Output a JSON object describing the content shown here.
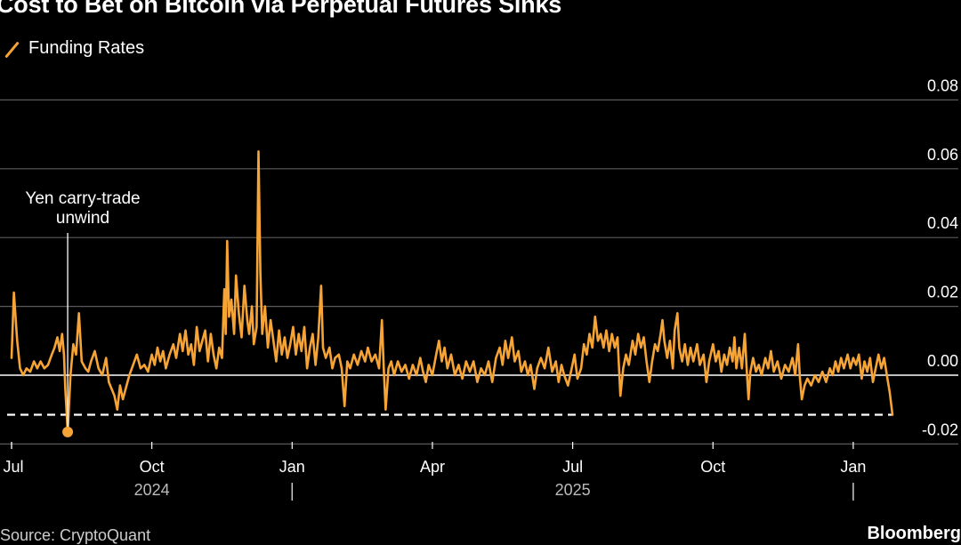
{
  "title": "Cost to Bet on Bitcoin via Perpetual Futures Sinks",
  "legend": {
    "label": "Funding Rates"
  },
  "source": "Source: CryptoQuant",
  "brand": "Bloomberg",
  "chart_data": {
    "type": "line",
    "title": "Cost to Bet on Bitcoin via Perpetual Futures Sinks",
    "ylabel": "",
    "xlabel": "",
    "ylim": [
      -0.025,
      0.085
    ],
    "y_ticks": [
      0.08,
      0.06,
      0.04,
      0.02,
      0.0,
      -0.02
    ],
    "y_tick_labels": [
      "0.08",
      "0.06",
      "0.04",
      "0.02",
      "0.00",
      "-0.02"
    ],
    "x_ticks": [
      {
        "t": 0,
        "label": "Jul"
      },
      {
        "t": 3,
        "label": "Oct"
      },
      {
        "t": 6,
        "label": "Jan"
      },
      {
        "t": 9,
        "label": "Apr"
      },
      {
        "t": 12,
        "label": "Jul"
      },
      {
        "t": 15,
        "label": "Oct"
      },
      {
        "t": 18,
        "label": "Jan"
      }
    ],
    "year_labels": [
      {
        "t": 3,
        "label": "2024"
      },
      {
        "t": 12,
        "label": "2025"
      }
    ],
    "year_dividers": [
      6,
      18
    ],
    "reference_line": {
      "value": -0.0115,
      "style": "dashed"
    },
    "annotation": {
      "t": 1.2,
      "value": -0.0165,
      "lines": [
        "Yen carry-trade",
        "unwind"
      ]
    },
    "series": [
      {
        "name": "Funding Rates",
        "color": "#f6a436",
        "x_unit": "months since Jul 1, 2024",
        "points": [
          [
            0.0,
            0.005
          ],
          [
            0.05,
            0.024
          ],
          [
            0.12,
            0.01
          ],
          [
            0.18,
            0.002
          ],
          [
            0.25,
            0.0
          ],
          [
            0.32,
            0.002
          ],
          [
            0.4,
            0.001
          ],
          [
            0.48,
            0.004
          ],
          [
            0.55,
            0.002
          ],
          [
            0.62,
            0.004
          ],
          [
            0.7,
            0.002
          ],
          [
            0.78,
            0.003
          ],
          [
            0.86,
            0.006
          ],
          [
            0.92,
            0.008
          ],
          [
            0.98,
            0.011
          ],
          [
            1.03,
            0.007
          ],
          [
            1.08,
            0.012
          ],
          [
            1.12,
            0.006
          ],
          [
            1.15,
            -0.004
          ],
          [
            1.2,
            -0.0165
          ],
          [
            1.26,
            0.0
          ],
          [
            1.32,
            0.009
          ],
          [
            1.38,
            0.006
          ],
          [
            1.44,
            0.018
          ],
          [
            1.5,
            0.004
          ],
          [
            1.58,
            0.002
          ],
          [
            1.64,
            0.001
          ],
          [
            1.7,
            0.004
          ],
          [
            1.78,
            0.007
          ],
          [
            1.86,
            0.002
          ],
          [
            1.94,
            0.0
          ],
          [
            2.02,
            0.005
          ],
          [
            2.08,
            -0.002
          ],
          [
            2.14,
            -0.004
          ],
          [
            2.2,
            -0.006
          ],
          [
            2.26,
            -0.01
          ],
          [
            2.32,
            -0.003
          ],
          [
            2.38,
            -0.007
          ],
          [
            2.44,
            -0.004
          ],
          [
            2.52,
            0.0
          ],
          [
            2.6,
            0.003
          ],
          [
            2.68,
            0.006
          ],
          [
            2.76,
            0.002
          ],
          [
            2.84,
            0.003
          ],
          [
            2.92,
            0.001
          ],
          [
            3.0,
            0.006
          ],
          [
            3.06,
            0.003
          ],
          [
            3.12,
            0.008
          ],
          [
            3.18,
            0.004
          ],
          [
            3.24,
            0.007
          ],
          [
            3.3,
            0.002
          ],
          [
            3.38,
            0.006
          ],
          [
            3.46,
            0.009
          ],
          [
            3.52,
            0.005
          ],
          [
            3.6,
            0.012
          ],
          [
            3.66,
            0.007
          ],
          [
            3.72,
            0.013
          ],
          [
            3.78,
            0.006
          ],
          [
            3.84,
            0.009
          ],
          [
            3.9,
            0.003
          ],
          [
            3.96,
            0.014
          ],
          [
            4.02,
            0.007
          ],
          [
            4.08,
            0.01
          ],
          [
            4.14,
            0.013
          ],
          [
            4.2,
            0.004
          ],
          [
            4.26,
            0.012
          ],
          [
            4.32,
            0.006
          ],
          [
            4.38,
            0.002
          ],
          [
            4.44,
            0.008
          ],
          [
            4.5,
            0.005
          ],
          [
            4.55,
            0.025
          ],
          [
            4.58,
            0.012
          ],
          [
            4.61,
            0.039
          ],
          [
            4.65,
            0.017
          ],
          [
            4.7,
            0.022
          ],
          [
            4.76,
            0.012
          ],
          [
            4.8,
            0.029
          ],
          [
            4.86,
            0.018
          ],
          [
            4.92,
            0.011
          ],
          [
            4.98,
            0.026
          ],
          [
            5.04,
            0.016
          ],
          [
            5.08,
            0.012
          ],
          [
            5.14,
            0.02
          ],
          [
            5.18,
            0.009
          ],
          [
            5.24,
            0.014
          ],
          [
            5.28,
            0.065
          ],
          [
            5.32,
            0.03
          ],
          [
            5.36,
            0.012
          ],
          [
            5.42,
            0.02
          ],
          [
            5.48,
            0.008
          ],
          [
            5.54,
            0.016
          ],
          [
            5.6,
            0.01
          ],
          [
            5.66,
            0.004
          ],
          [
            5.72,
            0.013
          ],
          [
            5.78,
            0.006
          ],
          [
            5.84,
            0.011
          ],
          [
            5.9,
            0.005
          ],
          [
            5.96,
            0.009
          ],
          [
            6.02,
            0.014
          ],
          [
            6.08,
            0.006
          ],
          [
            6.14,
            0.012
          ],
          [
            6.2,
            0.007
          ],
          [
            6.26,
            0.014
          ],
          [
            6.32,
            0.002
          ],
          [
            6.38,
            0.008
          ],
          [
            6.44,
            0.012
          ],
          [
            6.5,
            0.003
          ],
          [
            6.56,
            0.011
          ],
          [
            6.62,
            0.026
          ],
          [
            6.66,
            0.008
          ],
          [
            6.72,
            0.005
          ],
          [
            6.8,
            0.008
          ],
          [
            6.86,
            0.002
          ],
          [
            6.92,
            0.005
          ],
          [
            7.0,
            0.006
          ],
          [
            7.06,
            0.002
          ],
          [
            7.12,
            -0.009
          ],
          [
            7.18,
            0.004
          ],
          [
            7.24,
            0.002
          ],
          [
            7.32,
            0.006
          ],
          [
            7.4,
            0.003
          ],
          [
            7.48,
            0.007
          ],
          [
            7.56,
            0.004
          ],
          [
            7.62,
            0.008
          ],
          [
            7.7,
            0.004
          ],
          [
            7.78,
            0.006
          ],
          [
            7.86,
            0.002
          ],
          [
            7.92,
            0.016
          ],
          [
            7.96,
            0.002
          ],
          [
            8.0,
            -0.01
          ],
          [
            8.06,
            0.002
          ],
          [
            8.12,
            0.004
          ],
          [
            8.18,
            0.0
          ],
          [
            8.26,
            0.004
          ],
          [
            8.34,
            0.001
          ],
          [
            8.42,
            0.003
          ],
          [
            8.5,
            -0.001
          ],
          [
            8.58,
            0.003
          ],
          [
            8.66,
            0.0
          ],
          [
            8.74,
            0.005
          ],
          [
            8.8,
            0.001
          ],
          [
            8.86,
            -0.002
          ],
          [
            8.92,
            0.003
          ],
          [
            9.0,
            0.0
          ],
          [
            9.08,
            0.006
          ],
          [
            9.14,
            0.01
          ],
          [
            9.2,
            0.004
          ],
          [
            9.26,
            0.008
          ],
          [
            9.32,
            0.002
          ],
          [
            9.4,
            0.006
          ],
          [
            9.48,
            0.0
          ],
          [
            9.56,
            0.003
          ],
          [
            9.64,
            -0.001
          ],
          [
            9.72,
            0.004
          ],
          [
            9.8,
            0.001
          ],
          [
            9.88,
            0.004
          ],
          [
            9.96,
            -0.002
          ],
          [
            10.04,
            0.002
          ],
          [
            10.12,
            0.0
          ],
          [
            10.2,
            0.004
          ],
          [
            10.28,
            -0.002
          ],
          [
            10.36,
            0.005
          ],
          [
            10.44,
            0.008
          ],
          [
            10.5,
            0.003
          ],
          [
            10.56,
            0.01
          ],
          [
            10.62,
            0.005
          ],
          [
            10.7,
            0.011
          ],
          [
            10.76,
            0.004
          ],
          [
            10.84,
            0.007
          ],
          [
            10.9,
            0.001
          ],
          [
            10.98,
            0.004
          ],
          [
            11.04,
            0.0
          ],
          [
            11.1,
            0.003
          ],
          [
            11.18,
            -0.004
          ],
          [
            11.24,
            0.002
          ],
          [
            11.32,
            0.005
          ],
          [
            11.4,
            0.002
          ],
          [
            11.48,
            0.008
          ],
          [
            11.56,
            0.001
          ],
          [
            11.64,
            0.004
          ],
          [
            11.7,
            -0.002
          ],
          [
            11.76,
            0.003
          ],
          [
            11.82,
            0.0
          ],
          [
            11.9,
            -0.003
          ],
          [
            11.98,
            0.002
          ],
          [
            12.04,
            0.006
          ],
          [
            12.1,
            -0.001
          ],
          [
            12.18,
            0.002
          ],
          [
            12.24,
            0.009
          ],
          [
            12.3,
            0.006
          ],
          [
            12.36,
            0.012
          ],
          [
            12.42,
            0.008
          ],
          [
            12.48,
            0.017
          ],
          [
            12.54,
            0.01
          ],
          [
            12.6,
            0.012
          ],
          [
            12.66,
            0.008
          ],
          [
            12.72,
            0.013
          ],
          [
            12.78,
            0.007
          ],
          [
            12.84,
            0.012
          ],
          [
            12.9,
            0.008
          ],
          [
            12.96,
            0.011
          ],
          [
            13.02,
            -0.006
          ],
          [
            13.08,
            0.002
          ],
          [
            13.14,
            0.006
          ],
          [
            13.2,
            0.003
          ],
          [
            13.28,
            0.01
          ],
          [
            13.34,
            0.006
          ],
          [
            13.4,
            0.012
          ],
          [
            13.46,
            0.008
          ],
          [
            13.52,
            0.011
          ],
          [
            13.58,
            0.004
          ],
          [
            13.64,
            -0.002
          ],
          [
            13.7,
            0.004
          ],
          [
            13.76,
            0.009
          ],
          [
            13.82,
            0.007
          ],
          [
            13.88,
            0.012
          ],
          [
            13.92,
            0.016
          ],
          [
            13.96,
            0.01
          ],
          [
            14.02,
            0.005
          ],
          [
            14.08,
            0.01
          ],
          [
            14.14,
            0.002
          ],
          [
            14.18,
            0.013
          ],
          [
            14.24,
            0.018
          ],
          [
            14.28,
            0.008
          ],
          [
            14.34,
            0.004
          ],
          [
            14.4,
            0.009
          ],
          [
            14.46,
            0.003
          ],
          [
            14.52,
            0.008
          ],
          [
            14.58,
            0.004
          ],
          [
            14.66,
            0.009
          ],
          [
            14.72,
            0.003
          ],
          [
            14.8,
            0.006
          ],
          [
            14.86,
            -0.002
          ],
          [
            14.92,
            0.004
          ],
          [
            15.0,
            0.009
          ],
          [
            15.06,
            0.004
          ],
          [
            15.12,
            0.007
          ],
          [
            15.18,
            0.001
          ],
          [
            15.24,
            0.006
          ],
          [
            15.3,
            0.003
          ],
          [
            15.36,
            0.008
          ],
          [
            15.42,
            0.004
          ],
          [
            15.46,
            0.011
          ],
          [
            15.5,
            0.002
          ],
          [
            15.56,
            0.008
          ],
          [
            15.62,
            0.002
          ],
          [
            15.68,
            0.012
          ],
          [
            15.72,
            0.002
          ],
          [
            15.76,
            -0.007
          ],
          [
            15.8,
            0.001
          ],
          [
            15.86,
            0.005
          ],
          [
            15.92,
            0.001
          ],
          [
            15.98,
            0.003
          ],
          [
            16.04,
            0.0
          ],
          [
            16.12,
            0.005
          ],
          [
            16.18,
            0.002
          ],
          [
            16.24,
            0.007
          ],
          [
            16.3,
            0.001
          ],
          [
            16.38,
            0.004
          ],
          [
            16.46,
            -0.001
          ],
          [
            16.54,
            0.003
          ],
          [
            16.62,
            0.001
          ],
          [
            16.7,
            0.005
          ],
          [
            16.76,
            0.0
          ],
          [
            16.82,
            0.009
          ],
          [
            16.86,
            -0.001
          ],
          [
            16.9,
            -0.007
          ],
          [
            16.96,
            -0.003
          ],
          [
            17.02,
            -0.001
          ],
          [
            17.1,
            -0.003
          ],
          [
            17.18,
            0.0
          ],
          [
            17.26,
            -0.002
          ],
          [
            17.34,
            0.001
          ],
          [
            17.42,
            -0.002
          ],
          [
            17.5,
            0.002
          ],
          [
            17.56,
            0.0
          ],
          [
            17.62,
            0.004
          ],
          [
            17.68,
            0.001
          ],
          [
            17.74,
            0.005
          ],
          [
            17.8,
            0.002
          ],
          [
            17.88,
            0.006
          ],
          [
            17.94,
            0.002
          ],
          [
            18.0,
            0.005
          ],
          [
            18.06,
            0.003
          ],
          [
            18.12,
            0.006
          ],
          [
            18.18,
            -0.001
          ],
          [
            18.24,
            0.004
          ],
          [
            18.3,
            0.001
          ],
          [
            18.36,
            0.005
          ],
          [
            18.42,
            -0.002
          ],
          [
            18.48,
            0.002
          ],
          [
            18.54,
            0.006
          ],
          [
            18.6,
            0.002
          ],
          [
            18.66,
            0.005
          ],
          [
            18.72,
            0.0
          ],
          [
            18.78,
            -0.005
          ],
          [
            18.84,
            -0.0115
          ]
        ]
      }
    ]
  }
}
